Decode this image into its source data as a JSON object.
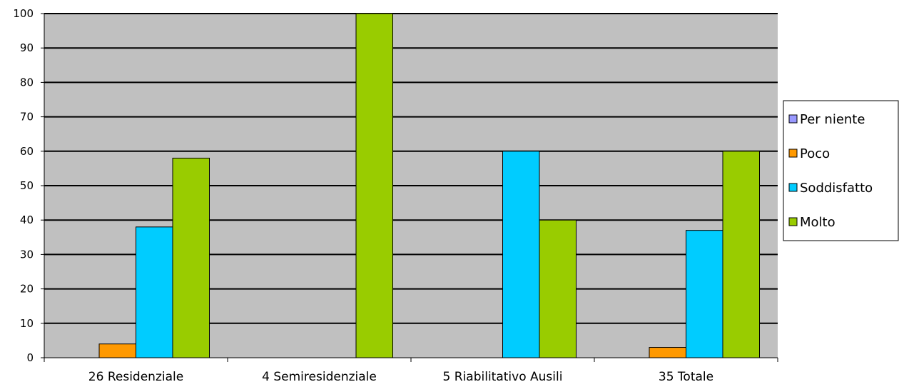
{
  "chart_data": {
    "type": "bar",
    "categories": [
      "26 Residenziale",
      "4 Semiresidenziale",
      "5 Riabilitativo Ausili",
      "35 Totale"
    ],
    "series": [
      {
        "name": "Per niente",
        "color": "#9999ff",
        "values": [
          0,
          0,
          0,
          0
        ]
      },
      {
        "name": "Poco",
        "color": "#ff9900",
        "values": [
          4,
          0,
          0,
          3
        ]
      },
      {
        "name": "Soddisfatto",
        "color": "#00ccff",
        "values": [
          38,
          0,
          60,
          37
        ]
      },
      {
        "name": "Molto",
        "color": "#99cc00",
        "values": [
          58,
          100,
          40,
          60
        ]
      }
    ],
    "ylim": [
      0,
      100
    ],
    "yticks": [
      "0",
      "10",
      "20",
      "30",
      "40",
      "50",
      "60",
      "70",
      "80",
      "90",
      "100"
    ],
    "grid": true,
    "legend_position": "right",
    "plot_background": "#c0c0c0"
  }
}
